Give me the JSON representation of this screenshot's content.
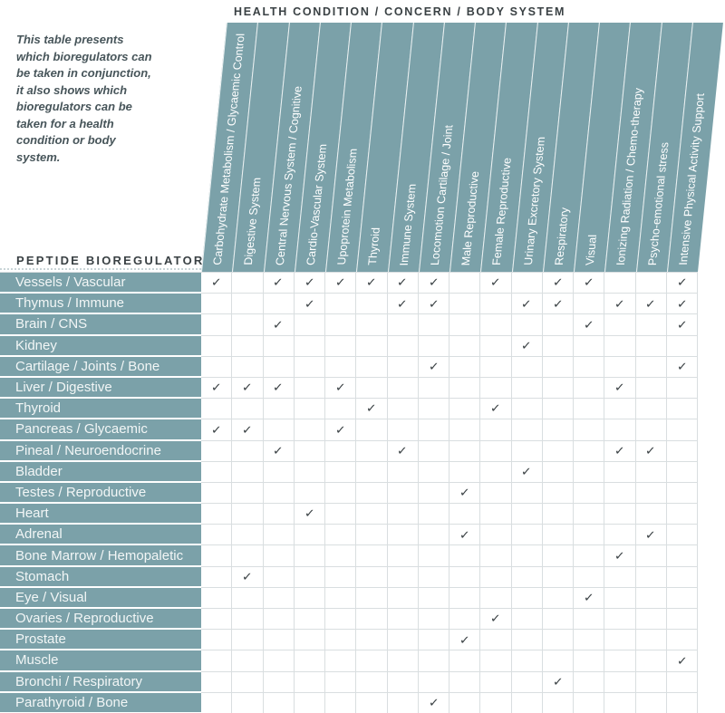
{
  "intro": {
    "text": "This table presents which bioregulators can be taken in conjunction, it also shows which bioregulators can be taken for a health condition or body system."
  },
  "check_glyph": "✓",
  "colors": {
    "teal": "#7BA1A9",
    "grid_line": "#D9DEE0",
    "check": "#3A4144",
    "title_text": "#3A4144",
    "intro_text": "#47555A"
  },
  "chart_data": {
    "type": "table",
    "title": "HEALTH CONDITION / CONCERN / BODY SYSTEM",
    "row_axis_label": "PEPTIDE BIOREGULATOR",
    "legend_position": "none",
    "columns": [
      "Carbohydrate Metabolism / Glycaemic Control",
      "Digestive System",
      "Central Nervous System / Cognitive",
      "Cardio-Vascular System",
      "Upoprotein Metabolism",
      "Thyroid",
      "Immune System",
      "Locomotion Cartilage / Joint",
      "Male Reproductive",
      "Female Reproductive",
      "Urinary Excretory System",
      "Respiratory",
      "Visual",
      "Ionizing Radiation / Chemo-therapy",
      "Psycho-emotional stress",
      "Intensive Physical Activity Support"
    ],
    "rows": [
      {
        "label": "Vessels / Vascular",
        "checks": [
          1,
          3,
          4,
          5,
          6,
          7,
          8,
          10,
          12,
          13,
          16
        ]
      },
      {
        "label": "Thymus / Immune",
        "checks": [
          4,
          7,
          8,
          11,
          12,
          14,
          15,
          16
        ]
      },
      {
        "label": "Brain / CNS",
        "checks": [
          3,
          13,
          16
        ]
      },
      {
        "label": "Kidney",
        "checks": [
          11
        ]
      },
      {
        "label": "Cartilage / Joints / Bone",
        "checks": [
          8,
          16
        ]
      },
      {
        "label": "Liver / Digestive",
        "checks": [
          1,
          2,
          3,
          5,
          14
        ]
      },
      {
        "label": "Thyroid",
        "checks": [
          6,
          10
        ]
      },
      {
        "label": "Pancreas / Glycaemic",
        "checks": [
          1,
          2,
          5
        ]
      },
      {
        "label": "Pineal / Neuroendocrine",
        "checks": [
          3,
          7,
          14,
          15
        ]
      },
      {
        "label": "Bladder",
        "checks": [
          11
        ]
      },
      {
        "label": "Testes / Reproductive",
        "checks": [
          9
        ]
      },
      {
        "label": "Heart",
        "checks": [
          4
        ]
      },
      {
        "label": "Adrenal",
        "checks": [
          9,
          15
        ]
      },
      {
        "label": "Bone Marrow / Hemopaletic",
        "checks": [
          14
        ]
      },
      {
        "label": "Stomach",
        "checks": [
          2
        ]
      },
      {
        "label": "Eye / Visual",
        "checks": [
          13
        ]
      },
      {
        "label": "Ovaries / Reproductive",
        "checks": [
          10
        ]
      },
      {
        "label": "Prostate",
        "checks": [
          9
        ]
      },
      {
        "label": "Muscle",
        "checks": [
          16
        ]
      },
      {
        "label": "Bronchi / Respiratory",
        "checks": [
          12
        ]
      },
      {
        "label": "Parathyroid / Bone",
        "checks": [
          8
        ]
      }
    ]
  }
}
